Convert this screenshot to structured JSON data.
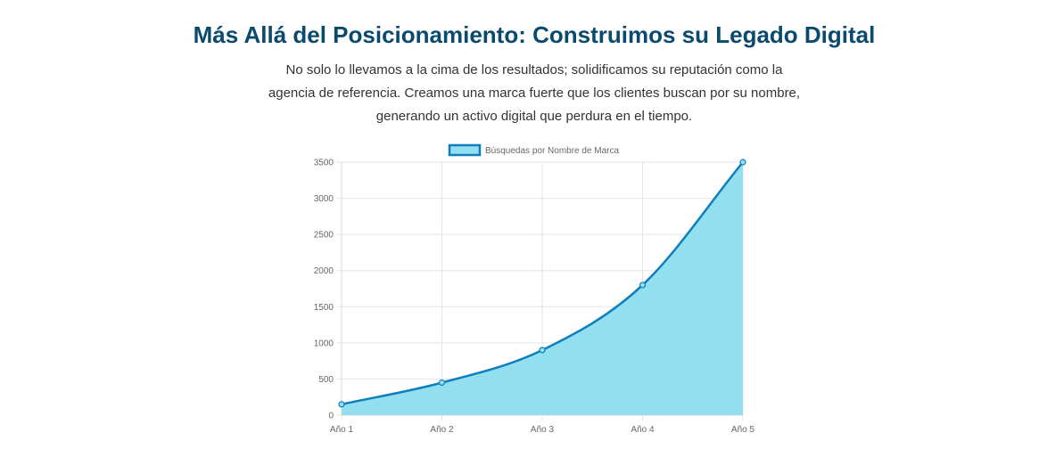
{
  "section": {
    "heading": "Más Allá del Posicionamiento: Construimos su Legado Digital",
    "paragraph_lines": [
      "No solo lo llevamos a la cima de los resultados; solidificamos su reputación como la",
      "agencia de referencia. Creamos una marca fuerte que los clientes buscan por su nombre,",
      "generando un activo digital que perdura en el tiempo."
    ]
  },
  "chart_data": {
    "type": "area",
    "categories": [
      "Año 1",
      "Año 2",
      "Año 3",
      "Año 4",
      "Año 5"
    ],
    "series": [
      {
        "name": "Búsquedas por Nombre de Marca",
        "values": [
          150,
          450,
          900,
          1800,
          3500
        ],
        "line_color": "#0e7fbc",
        "fill_color": "#92dff0"
      }
    ],
    "yticks": [
      0,
      500,
      1000,
      1500,
      2000,
      2500,
      3000,
      3500
    ],
    "ylim": [
      0,
      3500
    ],
    "grid": true,
    "legend": "top-center",
    "title": "",
    "xlabel": "",
    "ylabel": ""
  }
}
